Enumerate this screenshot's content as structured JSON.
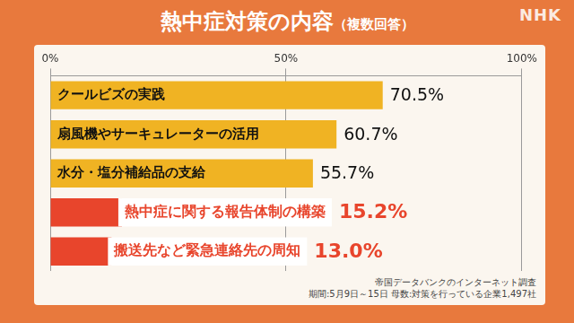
{
  "chart_data": {
    "type": "bar",
    "orientation": "horizontal",
    "title": "熱中症対策の内容",
    "subtitle": "（複数回答）",
    "categories": [
      "クールビズの実践",
      "扇風機やサーキュレーターの活用",
      "水分・塩分補給品の支給",
      "熱中症に関する報告体制の構築",
      "搬送先など緊急連絡先の周知"
    ],
    "values": [
      70.5,
      60.7,
      55.7,
      15.2,
      13.0
    ],
    "value_labels": [
      "70.5%",
      "60.7%",
      "55.7%",
      "15.2%",
      "13.0%"
    ],
    "colors": [
      "#f0b323",
      "#f0b323",
      "#f0b323",
      "#e8452c",
      "#e8452c"
    ],
    "xlim": [
      0,
      100
    ],
    "xticks": [
      {
        "value": 0,
        "label": "0%"
      },
      {
        "value": 50,
        "label": "50%"
      },
      {
        "value": 100,
        "label": "100%"
      }
    ],
    "grid": true,
    "data_labels": true,
    "tick_labels": "x",
    "source": "帝国データバンクのインターネット調査",
    "note": "期間:5月9日～15日 母数:対策を行っている企業1,497社",
    "logo": "NHK"
  }
}
